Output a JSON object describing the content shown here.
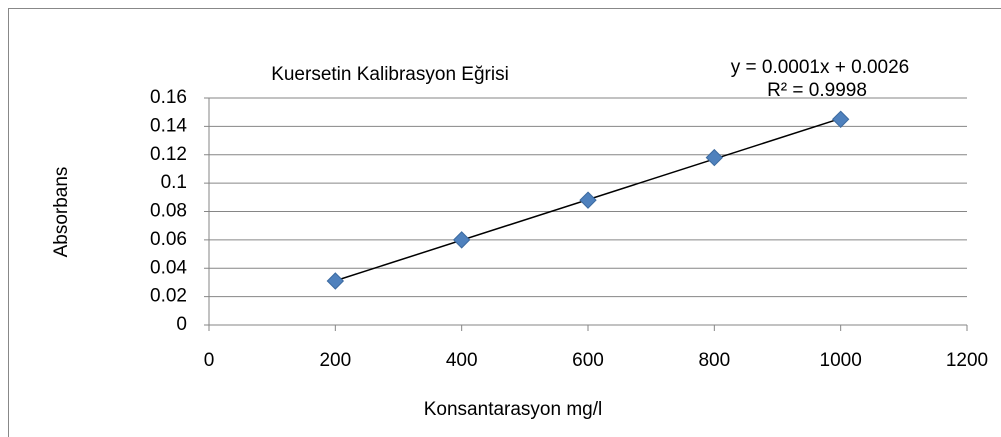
{
  "chart_data": {
    "type": "scatter",
    "title": "Kuersetin Kalibrasyon Eğrisi",
    "x_label": "Konsantarasyon mg/l",
    "y_label": "Absorbans",
    "annotations": [
      "y = 0.0001x + 0.0026",
      "R² = 0.9998"
    ],
    "trendline": "linear",
    "series": [
      {
        "color": "#4f81bd",
        "x": [
          200,
          400,
          600,
          800,
          1000
        ],
        "values": [
          0.031,
          0.06,
          0.088,
          0.118,
          0.145
        ]
      }
    ],
    "xlim": [
      0,
      1200
    ],
    "xticks": [
      0,
      200,
      400,
      600,
      800,
      1000,
      1200
    ],
    "ylim": [
      0,
      0.16
    ],
    "yticks": [
      0,
      0.02,
      0.04,
      0.06,
      0.08,
      0.1,
      0.12,
      0.14,
      0.16
    ],
    "grid": true
  }
}
